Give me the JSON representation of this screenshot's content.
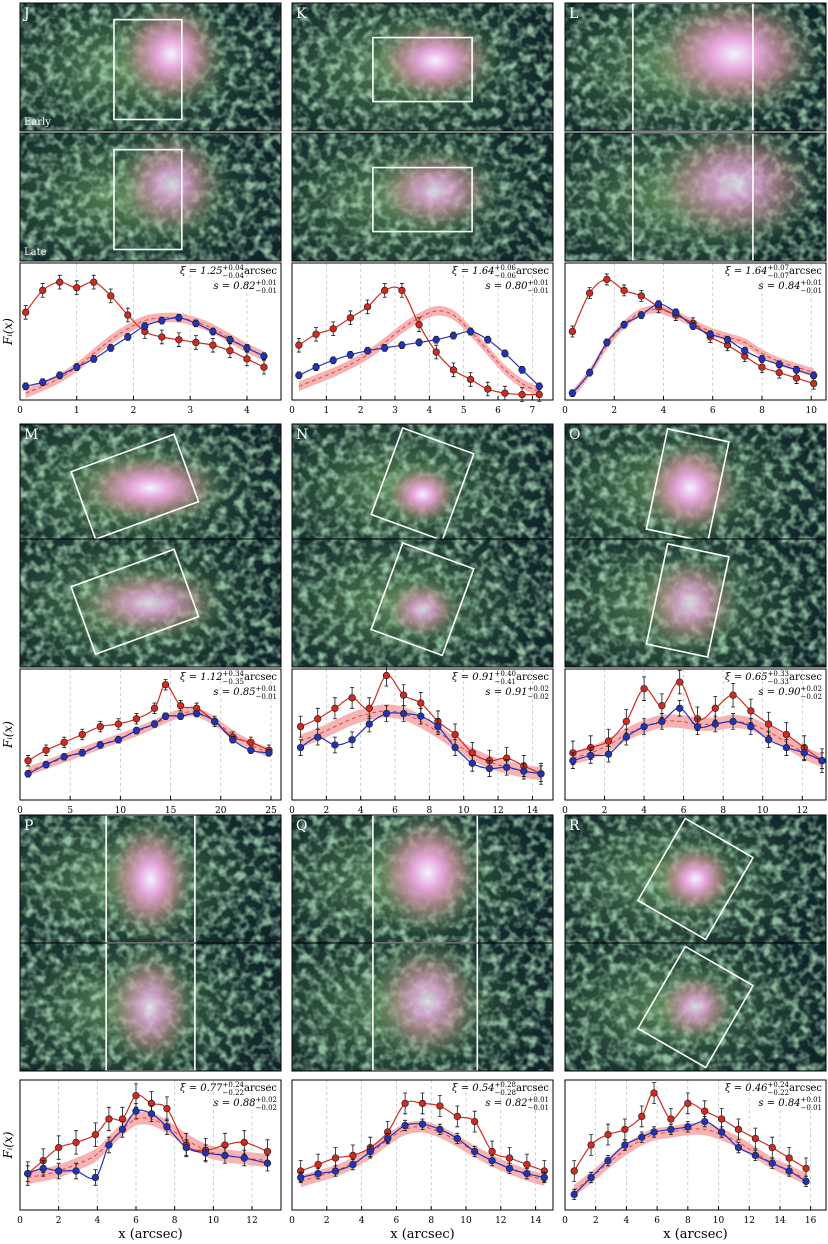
{
  "chart_data": [
    {
      "type": "errorbar",
      "label": "J",
      "image_labels": [
        "Early",
        "Late"
      ],
      "y_label": "Fᵢ(x)",
      "xlim": [
        0,
        4.6
      ],
      "xticks": [
        0,
        1,
        2,
        3,
        4
      ],
      "ylim": [
        0,
        1
      ],
      "grid": true,
      "x": [
        0.1,
        0.4,
        0.7,
        1.0,
        1.3,
        1.6,
        1.9,
        2.2,
        2.5,
        2.8,
        3.1,
        3.4,
        3.7,
        4.0,
        4.3
      ],
      "series": [
        {
          "color": "#d42a1e",
          "values": [
            0.64,
            0.8,
            0.86,
            0.82,
            0.86,
            0.76,
            0.62,
            0.5,
            0.46,
            0.44,
            0.42,
            0.4,
            0.36,
            0.3,
            0.24
          ],
          "error": 0.05
        },
        {
          "color": "#2233bb",
          "values": [
            0.1,
            0.13,
            0.18,
            0.24,
            0.3,
            0.38,
            0.46,
            0.54,
            0.58,
            0.6,
            0.56,
            0.5,
            0.44,
            0.38,
            0.32
          ],
          "error": 0.025
        }
      ],
      "model": {
        "color": "#e0453a",
        "band_color": "#f7b3b3",
        "values": [
          0.05,
          0.1,
          0.16,
          0.24,
          0.34,
          0.44,
          0.52,
          0.58,
          0.6,
          0.6,
          0.57,
          0.52,
          0.45,
          0.38,
          0.32
        ],
        "band": 0.035
      },
      "annotations": {
        "xi": {
          "label": "ξ = 1.25",
          "plus": "+0.04",
          "minus": "−0.04",
          "unit": "arcsec"
        },
        "s": {
          "label": "s = 0.82",
          "plus": "+0.01",
          "minus": "−0.01"
        }
      }
    },
    {
      "type": "errorbar",
      "label": "K",
      "xlim": [
        0,
        7.6
      ],
      "xticks": [
        0,
        1,
        2,
        3,
        4,
        5,
        6,
        7
      ],
      "ylim": [
        0,
        1
      ],
      "grid": true,
      "x": [
        0.2,
        0.7,
        1.2,
        1.7,
        2.2,
        2.7,
        3.2,
        3.7,
        4.2,
        4.7,
        5.2,
        5.7,
        6.2,
        6.7,
        7.2
      ],
      "series": [
        {
          "color": "#d42a1e",
          "values": [
            0.4,
            0.48,
            0.52,
            0.6,
            0.68,
            0.8,
            0.8,
            0.55,
            0.35,
            0.22,
            0.15,
            0.08,
            0.05,
            0.04,
            0.04
          ],
          "error": 0.05
        },
        {
          "color": "#2233bb",
          "values": [
            0.18,
            0.24,
            0.29,
            0.33,
            0.36,
            0.38,
            0.4,
            0.42,
            0.44,
            0.47,
            0.5,
            0.44,
            0.34,
            0.22,
            0.1
          ],
          "error": 0.025
        }
      ],
      "model": {
        "color": "#e0453a",
        "band_color": "#f7b3b3",
        "values": [
          0.1,
          0.15,
          0.2,
          0.26,
          0.33,
          0.42,
          0.52,
          0.6,
          0.65,
          0.62,
          0.5,
          0.36,
          0.22,
          0.12,
          0.06
        ],
        "band": 0.035
      },
      "annotations": {
        "xi": {
          "label": "ξ = 1.64",
          "plus": "+0.06",
          "minus": "−0.06",
          "unit": "arcsec"
        },
        "s": {
          "label": "s = 0.80",
          "plus": "+0.01",
          "minus": "−0.01"
        }
      }
    },
    {
      "type": "errorbar",
      "label": "L",
      "xlim": [
        0,
        10.6
      ],
      "xticks": [
        0,
        2,
        4,
        6,
        8,
        10
      ],
      "ylim": [
        0,
        1
      ],
      "grid": true,
      "x": [
        0.3,
        1.0,
        1.7,
        2.4,
        3.1,
        3.8,
        4.5,
        5.2,
        5.9,
        6.6,
        7.3,
        8.0,
        8.7,
        9.4,
        10.1
      ],
      "series": [
        {
          "color": "#d42a1e",
          "values": [
            0.5,
            0.78,
            0.88,
            0.8,
            0.76,
            0.68,
            0.62,
            0.56,
            0.46,
            0.4,
            0.32,
            0.24,
            0.2,
            0.16,
            0.12
          ],
          "error": 0.04
        },
        {
          "color": "#2233bb",
          "values": [
            0.05,
            0.2,
            0.42,
            0.55,
            0.62,
            0.7,
            0.64,
            0.54,
            0.48,
            0.44,
            0.36,
            0.3,
            0.26,
            0.22,
            0.18
          ],
          "error": 0.025
        }
      ],
      "model": {
        "color": "#e0453a",
        "band_color": "#f7b3b3",
        "values": [
          0.04,
          0.2,
          0.4,
          0.55,
          0.64,
          0.66,
          0.62,
          0.56,
          0.5,
          0.46,
          0.42,
          0.34,
          0.28,
          0.24,
          0.2
        ],
        "band": 0.03
      },
      "annotations": {
        "xi": {
          "label": "ξ = 1.64",
          "plus": "+0.07",
          "minus": "−0.07",
          "unit": "arcsec"
        },
        "s": {
          "label": "s = 0.84",
          "plus": "+0.01",
          "minus": "−0.01"
        }
      }
    },
    {
      "type": "errorbar",
      "label": "M",
      "y_label": "Fᵢ(x)",
      "xlim": [
        0,
        26
      ],
      "xticks": [
        0,
        5,
        10,
        15,
        20,
        25
      ],
      "ylim": [
        0,
        1
      ],
      "grid": true,
      "x": [
        0.8,
        2.6,
        4.4,
        6.2,
        8.0,
        9.8,
        11.6,
        13.4,
        14.5,
        16.0,
        17.6,
        19.4,
        21.2,
        23.0,
        24.8
      ],
      "series": [
        {
          "color": "#d42a1e",
          "values": [
            0.3,
            0.38,
            0.44,
            0.5,
            0.56,
            0.58,
            0.62,
            0.7,
            0.88,
            0.72,
            0.7,
            0.6,
            0.48,
            0.44,
            0.38
          ],
          "error": 0.04
        },
        {
          "color": "#2233bb",
          "values": [
            0.2,
            0.27,
            0.33,
            0.36,
            0.42,
            0.46,
            0.53,
            0.58,
            0.64,
            0.64,
            0.66,
            0.6,
            0.46,
            0.38,
            0.36
          ],
          "error": 0.025
        }
      ],
      "model": {
        "color": "#e0453a",
        "band_color": "#f7b3b3",
        "values": [
          0.22,
          0.27,
          0.32,
          0.37,
          0.42,
          0.47,
          0.52,
          0.58,
          0.62,
          0.66,
          0.67,
          0.6,
          0.5,
          0.42,
          0.36
        ],
        "band": 0.035
      },
      "annotations": {
        "xi": {
          "label": "ξ = 1.12",
          "plus": "+0.34",
          "minus": "−0.35",
          "unit": "arcsec"
        },
        "s": {
          "label": "s = 0.85",
          "plus": "+0.01",
          "minus": "−0.01"
        }
      }
    },
    {
      "type": "errorbar",
      "label": "N",
      "xlim": [
        0,
        15.2
      ],
      "xticks": [
        0,
        2,
        4,
        6,
        8,
        10,
        12,
        14
      ],
      "ylim": [
        0,
        1
      ],
      "grid": true,
      "x": [
        0.5,
        1.5,
        2.5,
        3.5,
        4.5,
        5.5,
        6.5,
        7.5,
        8.5,
        9.5,
        10.5,
        11.5,
        12.5,
        13.5,
        14.5
      ],
      "series": [
        {
          "color": "#d42a1e",
          "values": [
            0.56,
            0.62,
            0.7,
            0.78,
            0.7,
            0.95,
            0.8,
            0.74,
            0.6,
            0.5,
            0.36,
            0.3,
            0.32,
            0.26,
            0.2
          ],
          "error": 0.08
        },
        {
          "color": "#2233bb",
          "values": [
            0.4,
            0.48,
            0.42,
            0.46,
            0.58,
            0.66,
            0.66,
            0.64,
            0.56,
            0.4,
            0.28,
            0.24,
            0.25,
            0.22,
            0.2
          ],
          "error": 0.06
        }
      ],
      "model": {
        "color": "#e0453a",
        "band_color": "#f7b3b3",
        "values": [
          0.45,
          0.5,
          0.56,
          0.62,
          0.66,
          0.68,
          0.66,
          0.6,
          0.52,
          0.43,
          0.35,
          0.29,
          0.25,
          0.22,
          0.2
        ],
        "band": 0.05
      },
      "annotations": {
        "xi": {
          "label": "ξ = 0.91",
          "plus": "+0.40",
          "minus": "−0.41",
          "unit": "arcsec"
        },
        "s": {
          "label": "s = 0.91",
          "plus": "+0.02",
          "minus": "−0.02"
        }
      }
    },
    {
      "type": "errorbar",
      "label": "O",
      "xlim": [
        0,
        13.2
      ],
      "xticks": [
        0,
        2,
        4,
        6,
        8,
        10,
        12
      ],
      "ylim": [
        0,
        1
      ],
      "grid": true,
      "x": [
        0.4,
        1.3,
        2.2,
        3.1,
        4.0,
        4.9,
        5.8,
        6.7,
        7.6,
        8.5,
        9.4,
        10.3,
        11.2,
        12.1,
        13.0
      ],
      "series": [
        {
          "color": "#d42a1e",
          "values": [
            0.36,
            0.4,
            0.45,
            0.6,
            0.85,
            0.72,
            0.9,
            0.62,
            0.7,
            0.8,
            0.68,
            0.58,
            0.5,
            0.4,
            0.3
          ],
          "error": 0.09
        },
        {
          "color": "#2233bb",
          "values": [
            0.3,
            0.34,
            0.35,
            0.48,
            0.56,
            0.6,
            0.7,
            0.56,
            0.58,
            0.6,
            0.56,
            0.46,
            0.4,
            0.36,
            0.3
          ],
          "error": 0.06
        }
      ],
      "model": {
        "color": "#e0453a",
        "band_color": "#f7b3b3",
        "values": [
          0.32,
          0.36,
          0.42,
          0.5,
          0.56,
          0.6,
          0.6,
          0.58,
          0.58,
          0.6,
          0.58,
          0.52,
          0.44,
          0.36,
          0.3
        ],
        "band": 0.05
      },
      "annotations": {
        "xi": {
          "label": "ξ = 0.65",
          "plus": "+0.33",
          "minus": "−0.33",
          "unit": "arcsec"
        },
        "s": {
          "label": "s = 0.90",
          "plus": "+0.02",
          "minus": "−0.02"
        }
      }
    },
    {
      "type": "errorbar",
      "label": "P",
      "y_label": "Fᵢ(x)",
      "x_label": "x (arcsec)",
      "xlim": [
        0,
        13.5
      ],
      "xticks": [
        0,
        2,
        4,
        6,
        8,
        10,
        12
      ],
      "ylim": [
        0,
        1
      ],
      "grid": true,
      "x": [
        0.4,
        1.2,
        2.0,
        2.9,
        3.9,
        4.6,
        5.3,
        6.0,
        6.8,
        7.6,
        8.6,
        9.6,
        10.6,
        11.6,
        12.8
      ],
      "series": [
        {
          "color": "#d42a1e",
          "values": [
            0.28,
            0.38,
            0.48,
            0.52,
            0.58,
            0.7,
            0.7,
            0.88,
            0.82,
            0.78,
            0.5,
            0.46,
            0.5,
            0.52,
            0.45
          ],
          "error": 0.09
        },
        {
          "color": "#2233bb",
          "values": [
            0.28,
            0.32,
            0.3,
            0.3,
            0.25,
            0.5,
            0.62,
            0.76,
            0.74,
            0.64,
            0.48,
            0.44,
            0.42,
            0.4,
            0.36
          ],
          "error": 0.06
        }
      ],
      "model": {
        "color": "#e0453a",
        "band_color": "#f7b3b3",
        "values": [
          0.25,
          0.27,
          0.3,
          0.35,
          0.42,
          0.52,
          0.62,
          0.7,
          0.7,
          0.64,
          0.54,
          0.46,
          0.42,
          0.4,
          0.38
        ],
        "band": 0.05
      },
      "annotations": {
        "xi": {
          "label": "ξ = 0.77",
          "plus": "+0.24",
          "minus": "−0.22",
          "unit": "arcsec"
        },
        "s": {
          "label": "s = 0.88",
          "plus": "+0.02",
          "minus": "−0.02"
        }
      }
    },
    {
      "type": "errorbar",
      "label": "Q",
      "x_label": "x (arcsec)",
      "xlim": [
        0,
        15
      ],
      "xticks": [
        0,
        2,
        4,
        6,
        8,
        10,
        12,
        14
      ],
      "ylim": [
        0,
        1
      ],
      "grid": true,
      "x": [
        0.5,
        1.5,
        2.5,
        3.5,
        4.5,
        5.5,
        6.5,
        7.5,
        8.5,
        9.5,
        10.5,
        11.5,
        12.5,
        13.5,
        14.5
      ],
      "series": [
        {
          "color": "#d42a1e",
          "values": [
            0.3,
            0.35,
            0.4,
            0.42,
            0.48,
            0.6,
            0.82,
            0.82,
            0.8,
            0.72,
            0.68,
            0.45,
            0.4,
            0.35,
            0.3
          ],
          "error": 0.08
        },
        {
          "color": "#2233bb",
          "values": [
            0.25,
            0.28,
            0.3,
            0.35,
            0.45,
            0.55,
            0.65,
            0.66,
            0.62,
            0.55,
            0.45,
            0.38,
            0.32,
            0.28,
            0.25
          ],
          "error": 0.04
        }
      ],
      "model": {
        "color": "#e0453a",
        "band_color": "#f7b3b3",
        "values": [
          0.22,
          0.26,
          0.3,
          0.36,
          0.44,
          0.54,
          0.62,
          0.64,
          0.6,
          0.53,
          0.45,
          0.38,
          0.32,
          0.27,
          0.23
        ],
        "band": 0.045
      },
      "annotations": {
        "xi": {
          "label": "ξ = 0.54",
          "plus": "+0.28",
          "minus": "−0.28",
          "unit": "arcsec"
        },
        "s": {
          "label": "s = 0.82",
          "plus": "+0.01",
          "minus": "−0.01"
        }
      }
    },
    {
      "type": "errorbar",
      "label": "R",
      "x_label": "x (arcsec)",
      "xlim": [
        0,
        17
      ],
      "xticks": [
        0,
        2,
        4,
        6,
        8,
        10,
        12,
        14,
        16
      ],
      "ylim": [
        0,
        1
      ],
      "grid": true,
      "x": [
        0.6,
        1.7,
        2.8,
        3.9,
        5.0,
        5.8,
        6.9,
        8.0,
        9.1,
        10.2,
        11.3,
        12.4,
        13.5,
        14.6,
        15.7
      ],
      "series": [
        {
          "color": "#d42a1e",
          "values": [
            0.3,
            0.5,
            0.58,
            0.62,
            0.72,
            0.9,
            0.7,
            0.82,
            0.76,
            0.7,
            0.62,
            0.55,
            0.48,
            0.4,
            0.32
          ],
          "error": 0.08
        },
        {
          "color": "#2233bb",
          "values": [
            0.12,
            0.25,
            0.38,
            0.5,
            0.56,
            0.6,
            0.62,
            0.64,
            0.68,
            0.6,
            0.48,
            0.42,
            0.36,
            0.3,
            0.22
          ],
          "error": 0.04
        }
      ],
      "model": {
        "color": "#e0453a",
        "band_color": "#f7b3b3",
        "values": [
          0.15,
          0.25,
          0.36,
          0.46,
          0.54,
          0.58,
          0.6,
          0.62,
          0.62,
          0.58,
          0.52,
          0.44,
          0.36,
          0.3,
          0.24
        ],
        "band": 0.045
      },
      "annotations": {
        "xi": {
          "label": "ξ = 0.46",
          "plus": "+0.24",
          "minus": "−0.22",
          "unit": "arcsec"
        },
        "s": {
          "label": "s = 0.84",
          "plus": "+0.01",
          "minus": "−0.01"
        }
      }
    }
  ]
}
